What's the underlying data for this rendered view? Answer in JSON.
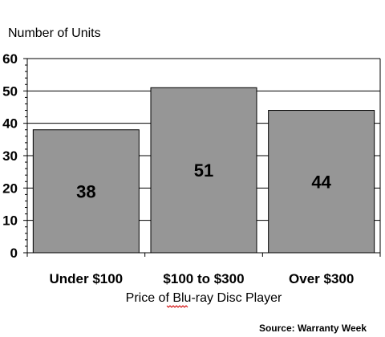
{
  "chart_data": {
    "type": "bar",
    "title": "Number of Units",
    "xlabel": "Price of Blu-ray Disc Player",
    "ylabel": "",
    "categories": [
      "Under $100",
      "$100 to $300",
      "Over $300"
    ],
    "values": [
      38,
      51,
      44
    ],
    "data_labels": [
      "38",
      "51",
      "44"
    ],
    "ylim": [
      0,
      60
    ],
    "yticks": [
      "0",
      "10",
      "20",
      "30",
      "40",
      "50",
      "60"
    ],
    "grid": true,
    "bar_color": "#969696",
    "source": "Source: Warranty Week"
  }
}
